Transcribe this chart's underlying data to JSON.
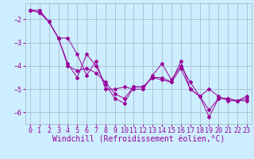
{
  "background_color": "#cceeff",
  "grid_color": "#aabbcc",
  "line_color": "#990099",
  "marker_color": "#990099",
  "xlabel": "Windchill (Refroidissement éolien,°C)",
  "xlabel_fontsize": 7,
  "tick_fontsize": 6,
  "xlim": [
    -0.5,
    23.5
  ],
  "ylim": [
    -6.5,
    -1.3
  ],
  "yticks": [
    -6,
    -5,
    -4,
    -3,
    -2
  ],
  "xticks": [
    0,
    1,
    2,
    3,
    4,
    5,
    6,
    7,
    8,
    9,
    10,
    11,
    12,
    13,
    14,
    15,
    16,
    17,
    18,
    19,
    20,
    21,
    22,
    23
  ],
  "series1_x": [
    0,
    1,
    2,
    3,
    4,
    5,
    6,
    7,
    8,
    9,
    10,
    11,
    12,
    13,
    14,
    15,
    16,
    17,
    18,
    19,
    20,
    21,
    22,
    23
  ],
  "series1_y": [
    -1.6,
    -1.7,
    -2.1,
    -2.8,
    -3.9,
    -4.5,
    -3.5,
    -4.0,
    -4.8,
    -5.4,
    -5.6,
    -4.9,
    -4.9,
    -4.5,
    -4.6,
    -4.7,
    -3.8,
    -5.0,
    -5.3,
    -6.2,
    -5.4,
    -5.4,
    -5.5,
    -5.5
  ],
  "series2_x": [
    0,
    1,
    2,
    3,
    4,
    5,
    6,
    7,
    8,
    9,
    10,
    11,
    12,
    13,
    14,
    15,
    16,
    17,
    18,
    19,
    20,
    21,
    22,
    23
  ],
  "series2_y": [
    -1.6,
    -1.6,
    -2.1,
    -2.8,
    -2.8,
    -3.5,
    -4.4,
    -3.8,
    -5.0,
    -5.0,
    -4.9,
    -5.0,
    -5.0,
    -4.4,
    -3.9,
    -4.6,
    -4.0,
    -4.7,
    -5.3,
    -5.0,
    -5.3,
    -5.5,
    -5.5,
    -5.3
  ],
  "series3_x": [
    0,
    1,
    2,
    3,
    4,
    5,
    6,
    7,
    8,
    9,
    10,
    11,
    12,
    13,
    14,
    15,
    16,
    17,
    18,
    19,
    20,
    21,
    22,
    23
  ],
  "series3_y": [
    -1.6,
    -1.7,
    -2.1,
    -2.8,
    -4.0,
    -4.2,
    -4.1,
    -4.3,
    -4.7,
    -5.2,
    -5.4,
    -4.9,
    -4.9,
    -4.5,
    -4.5,
    -4.7,
    -4.1,
    -5.0,
    -5.3,
    -5.9,
    -5.4,
    -5.4,
    -5.5,
    -5.4
  ]
}
